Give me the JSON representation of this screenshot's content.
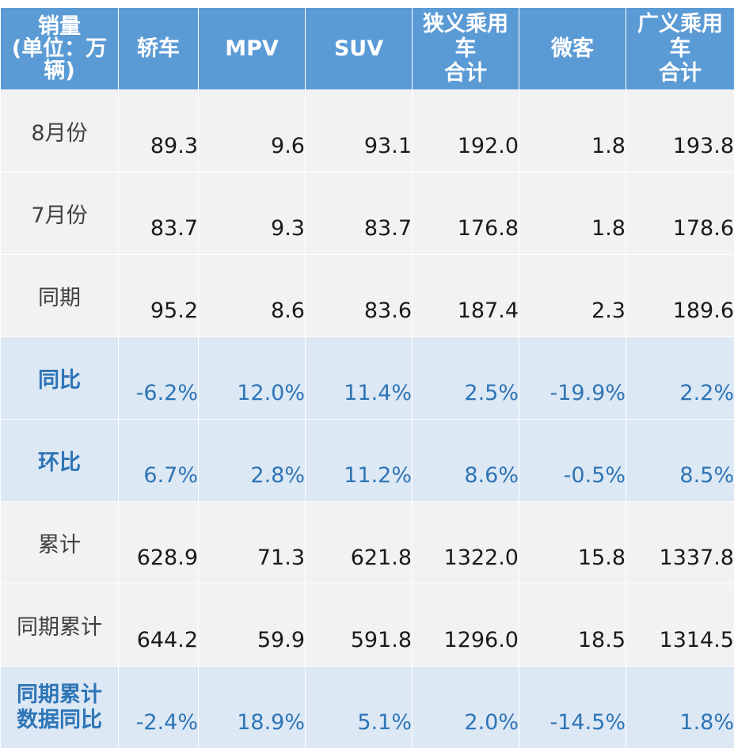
{
  "header": {
    "col0": [
      "销量",
      "(单位：万",
      "辆)"
    ],
    "col1": "轿车",
    "col2": "MPV",
    "col3": "SUV",
    "col4": [
      "狭义乘用",
      "车",
      "合计"
    ],
    "col5": "微客",
    "col6": [
      "广义乘用",
      "车",
      "合计"
    ]
  },
  "rows": [
    {
      "label": [
        "8月份"
      ],
      "values": [
        "89.3",
        "9.6",
        "93.1",
        "192.0",
        "1.8",
        "193.8"
      ]
    },
    {
      "label": [
        "7月份"
      ],
      "values": [
        "83.7",
        "9.3",
        "83.7",
        "176.8",
        "1.8",
        "178.6"
      ]
    },
    {
      "label": [
        "同期"
      ],
      "values": [
        "95.2",
        "8.6",
        "83.6",
        "187.4",
        "2.3",
        "189.6"
      ]
    },
    {
      "label": [
        "同比"
      ],
      "values": [
        "-6.2%",
        "12.0%",
        "11.4%",
        "2.5%",
        "-19.9%",
        "2.2%"
      ]
    },
    {
      "label": [
        "环比"
      ],
      "values": [
        "6.7%",
        "2.8%",
        "11.2%",
        "8.6%",
        "-0.5%",
        "8.5%"
      ]
    },
    {
      "label": [
        "累计"
      ],
      "values": [
        "628.9",
        "71.3",
        "621.8",
        "1322.0",
        "15.8",
        "1337.8"
      ]
    },
    {
      "label": [
        "同期累计"
      ],
      "values": [
        "644.2",
        "59.9",
        "591.8",
        "1296.0",
        "18.5",
        "1314.5"
      ]
    },
    {
      "label": [
        "同期累计",
        "数据同比"
      ],
      "values": [
        "-2.4%",
        "18.9%",
        "5.1%",
        "2.0%",
        "-14.5%",
        "1.8%"
      ]
    }
  ]
}
